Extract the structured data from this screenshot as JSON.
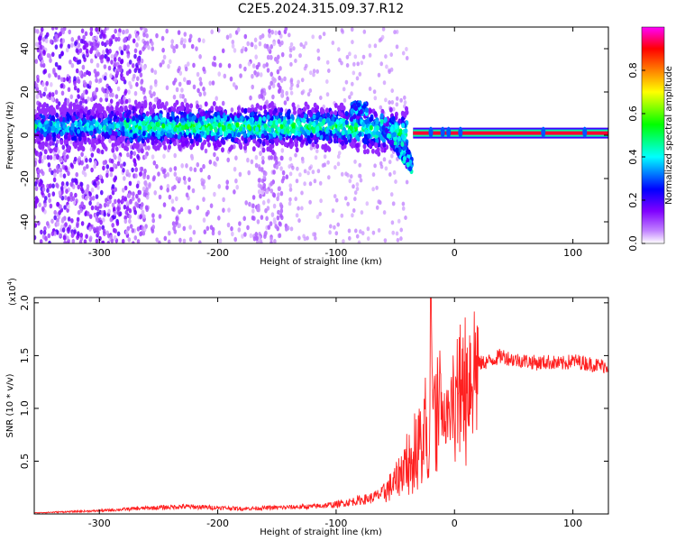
{
  "title": "C2E5.2024.315.09.37.R12",
  "chart_data": [
    {
      "type": "heatmap",
      "xlabel": "Height of straight line (km)",
      "ylabel": "Frequency (Hz)",
      "xlim": [
        -355,
        130
      ],
      "ylim": [
        -50,
        50
      ],
      "x_ticks": [
        -300,
        -200,
        -100,
        0,
        100
      ],
      "y_ticks": [
        -40,
        -20,
        0,
        20,
        40
      ],
      "x_tick_labels": [
        "-300",
        "-200",
        "-100",
        "0",
        "100"
      ],
      "y_tick_labels": [
        "-40",
        "-20",
        "0",
        "20",
        "40"
      ],
      "colorbar": {
        "label": "Normalized spectral amplitude",
        "ticks": [
          0.0,
          0.2,
          0.4,
          0.6,
          0.8
        ],
        "tick_labels": [
          "0.0",
          "0.2",
          "0.4",
          "0.6",
          "0.8"
        ],
        "range": [
          0,
          1
        ],
        "colormap": [
          "#ffffff",
          "#8000ff",
          "#0000ff",
          "#00ffff",
          "#00ff00",
          "#ffff00",
          "#ff8000",
          "#ff0000",
          "#ff00ff"
        ]
      },
      "features": [
        {
          "x_range": [
            -355,
            -40
          ],
          "freq_center": 4,
          "amplitude": 0.35
        },
        {
          "x_range": [
            -35,
            130
          ],
          "freq_center": 1,
          "amplitude": 0.95
        },
        {
          "x_range": [
            -85,
            -75
          ],
          "freq_center": 12,
          "amplitude": 0.3
        }
      ]
    },
    {
      "type": "line",
      "xlabel": "Height of straight line (km)",
      "ylabel": "SNR (10 * v/v)",
      "y_multiplier": "(x10",
      "y_multiplier_exp": "4",
      "xlim": [
        -355,
        130
      ],
      "ylim": [
        0,
        2.05
      ],
      "x_ticks": [
        -300,
        -200,
        -100,
        0,
        100
      ],
      "y_ticks": [
        0.5,
        1.0,
        1.5,
        2.0
      ],
      "x_tick_labels": [
        "-300",
        "-200",
        "-100",
        "0",
        "100"
      ],
      "y_tick_labels": [
        "0.5",
        "1.0",
        "1.5",
        "2.0"
      ],
      "color": "#ff2020",
      "series": [
        {
          "x": [
            -355,
            -330,
            -300,
            -270,
            -250,
            -230,
            -200,
            -180,
            -150,
            -120,
            -100,
            -85,
            -70,
            -60,
            -50,
            -45,
            -40,
            -35,
            -30,
            -27,
            -25,
            -22,
            -20,
            -18,
            -15,
            -12,
            -10,
            -5,
            0,
            5,
            10,
            15,
            20,
            30,
            40,
            50,
            60,
            70,
            80,
            90,
            100,
            110,
            120,
            130
          ],
          "y": [
            0.01,
            0.02,
            0.03,
            0.05,
            0.06,
            0.07,
            0.06,
            0.05,
            0.06,
            0.07,
            0.09,
            0.12,
            0.15,
            0.2,
            0.3,
            0.4,
            0.55,
            0.6,
            0.8,
            0.45,
            1.0,
            0.4,
            2.05,
            0.9,
            1.1,
            1.0,
            0.9,
            0.95,
            1.05,
            1.2,
            1.3,
            1.38,
            1.42,
            1.45,
            1.5,
            1.46,
            1.45,
            1.43,
            1.44,
            1.42,
            1.45,
            1.43,
            1.41,
            1.4
          ]
        }
      ]
    }
  ]
}
